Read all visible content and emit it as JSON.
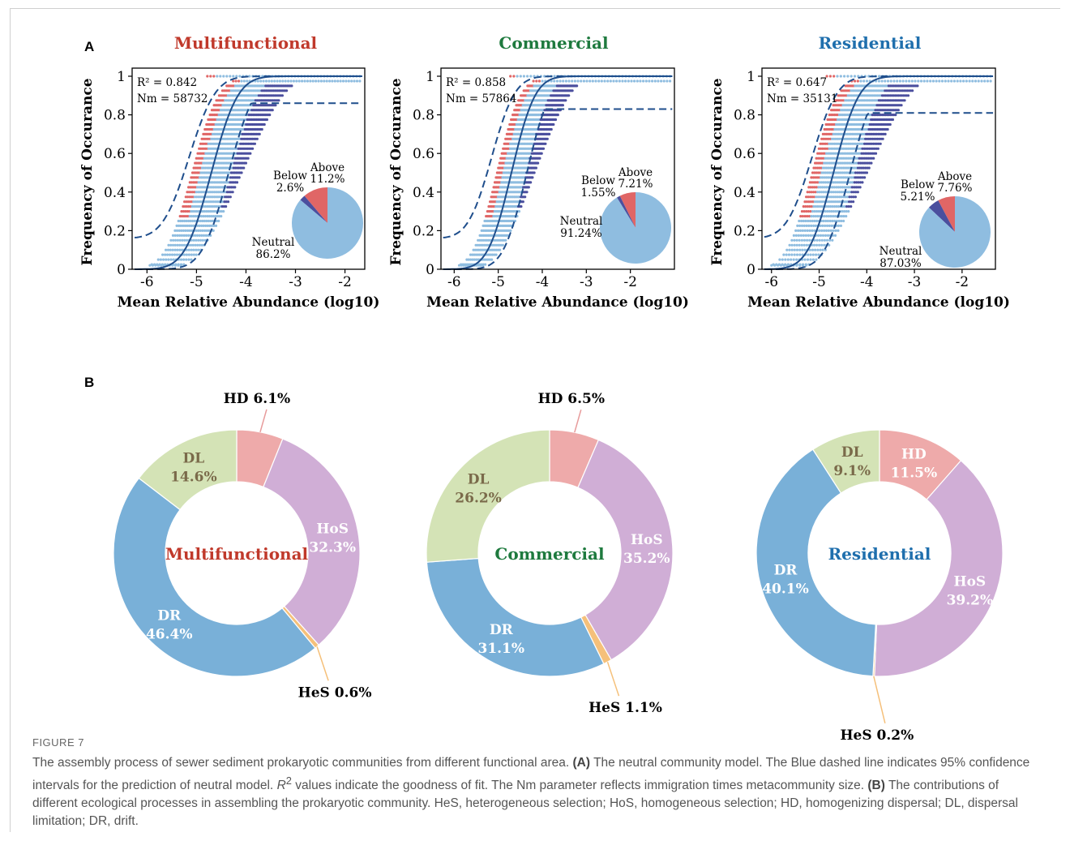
{
  "panel_a_label": "A",
  "panel_b_label": "B",
  "figure_label": "FIGURE 7",
  "caption": {
    "s1": "The assembly process of sewer sediment prokaryotic communities from different functional area.",
    "a_tag": "(A)",
    "s2": "The neutral community model. The Blue dashed line indicates 95% confidence intervals for the prediction of neutral model.",
    "r_sym": "R",
    "r_sup": "2",
    "s3": "values indicate the goodness of fit. The Nm parameter reflects immigration times metacommunity size.",
    "b_tag": "(B)",
    "s4": "The contributions of different ecological processes in assembling the prokaryotic community. HeS, heterogeneous selection; HoS, homogeneous selection; HD, homogenizing dispersal; DL, dispersal limitation; DR, drift."
  },
  "colors": {
    "multifunctional": "#c0392b",
    "commercial": "#1e7a3e",
    "residential": "#1f6fad",
    "curve": "#1f4e8c",
    "above": "#e06666",
    "below": "#4b4f9e",
    "neutral": "#8fbde0",
    "HD": "#eeaaaa",
    "HoS": "#d0aed6",
    "HeS": "#f5c07a",
    "DR": "#79b0d8",
    "DL": "#d4e3b6"
  },
  "chart_data": [
    {
      "type": "scatter",
      "panel": "A",
      "title": "Multifunctional",
      "xlabel": "Mean Relative Abundance (log10)",
      "ylabel": "Frequency of Occurance",
      "xlim": [
        -6.3,
        -1.6
      ],
      "ylim": [
        0,
        1
      ],
      "xticks": [
        "-6",
        "-5",
        "-4",
        "-3",
        "-2"
      ],
      "yticks": [
        "0",
        "0.2",
        "0.4",
        "0.6",
        "0.8",
        "1"
      ],
      "r2": "R² = 0.842",
      "nm": "Nm = 58732",
      "upper_limit": 0.86,
      "xmax": -1.7,
      "spread": 1.0,
      "pie": [
        {
          "name": "Above",
          "label": "Above",
          "pct": "11.2%",
          "value": 11.2
        },
        {
          "name": "Below",
          "label": "Below",
          "pct": "2.6%",
          "value": 2.6
        },
        {
          "name": "Neutral",
          "label": "Neutral",
          "pct": "86.2%",
          "value": 86.2
        }
      ]
    },
    {
      "type": "scatter",
      "panel": "A",
      "title": "Commercial",
      "xlabel": "Mean Relative Abundance (log10)",
      "ylabel": "Frequency of Occurance",
      "xlim": [
        -6.3,
        -1.0
      ],
      "ylim": [
        0,
        1
      ],
      "xticks": [
        "-6",
        "-5",
        "-4",
        "-3",
        "-2"
      ],
      "yticks": [
        "0",
        "0.2",
        "0.4",
        "0.6",
        "0.8",
        "1"
      ],
      "r2": "R² = 0.858",
      "nm": "Nm = 57864",
      "upper_limit": 0.83,
      "xmax": -1.1,
      "spread": 0.85,
      "pie": [
        {
          "name": "Above",
          "label": "Above",
          "pct": "7.21%",
          "value": 7.21
        },
        {
          "name": "Below",
          "label": "Below",
          "pct": "1.55%",
          "value": 1.55
        },
        {
          "name": "Neutral",
          "label": "Neutral",
          "pct": "91.24%",
          "value": 91.24
        }
      ]
    },
    {
      "type": "scatter",
      "panel": "A",
      "title": "Residential",
      "xlabel": "Mean Relative Abundance (log10)",
      "ylabel": "Frequency of Occurance",
      "xlim": [
        -6.2,
        -1.3
      ],
      "ylim": [
        0,
        1
      ],
      "xticks": [
        "-6",
        "-5",
        "-4",
        "-3",
        "-2"
      ],
      "yticks": [
        "0",
        "0.2",
        "0.4",
        "0.6",
        "0.8",
        "1"
      ],
      "r2": "R² = 0.647",
      "nm": "Nm = 35131",
      "upper_limit": 0.81,
      "xmax": -1.4,
      "spread": 1.15,
      "pie": [
        {
          "name": "Above",
          "label": "Above",
          "pct": "7.76%",
          "value": 7.76
        },
        {
          "name": "Below",
          "label": "Below",
          "pct": "5.21%",
          "value": 5.21
        },
        {
          "name": "Neutral",
          "label": "Neutral",
          "pct": "87.03%",
          "value": 87.03
        }
      ]
    },
    {
      "type": "pie",
      "panel": "B",
      "title": "Multifunctional",
      "slices": [
        {
          "name": "HD",
          "label": "HD",
          "pct": "6.1%",
          "value": 6.1
        },
        {
          "name": "HoS",
          "label": "HoS",
          "pct": "32.3%",
          "value": 32.3
        },
        {
          "name": "HeS",
          "label": "HeS",
          "pct": "0.6%",
          "value": 0.6
        },
        {
          "name": "DR",
          "label": "DR",
          "pct": "46.4%",
          "value": 46.4
        },
        {
          "name": "DL",
          "label": "DL",
          "pct": "14.6%",
          "value": 14.6
        }
      ]
    },
    {
      "type": "pie",
      "panel": "B",
      "title": "Commercial",
      "slices": [
        {
          "name": "HD",
          "label": "HD",
          "pct": "6.5%",
          "value": 6.5
        },
        {
          "name": "HoS",
          "label": "HoS",
          "pct": "35.2%",
          "value": 35.2
        },
        {
          "name": "HeS",
          "label": "HeS",
          "pct": "1.1%",
          "value": 1.1
        },
        {
          "name": "DR",
          "label": "DR",
          "pct": "31.1%",
          "value": 31.1
        },
        {
          "name": "DL",
          "label": "DL",
          "pct": "26.2%",
          "value": 26.2
        }
      ]
    },
    {
      "type": "pie",
      "panel": "B",
      "title": "Residential",
      "slices": [
        {
          "name": "HD",
          "label": "HD",
          "pct": "11.5%",
          "value": 11.5
        },
        {
          "name": "HoS",
          "label": "HoS",
          "pct": "39.2%",
          "value": 39.2
        },
        {
          "name": "HeS",
          "label": "HeS",
          "pct": "0.2%",
          "value": 0.2
        },
        {
          "name": "DR",
          "label": "DR",
          "pct": "40.1%",
          "value": 40.1
        },
        {
          "name": "DL",
          "label": "DL",
          "pct": "9.1%",
          "value": 9.1
        }
      ]
    }
  ]
}
